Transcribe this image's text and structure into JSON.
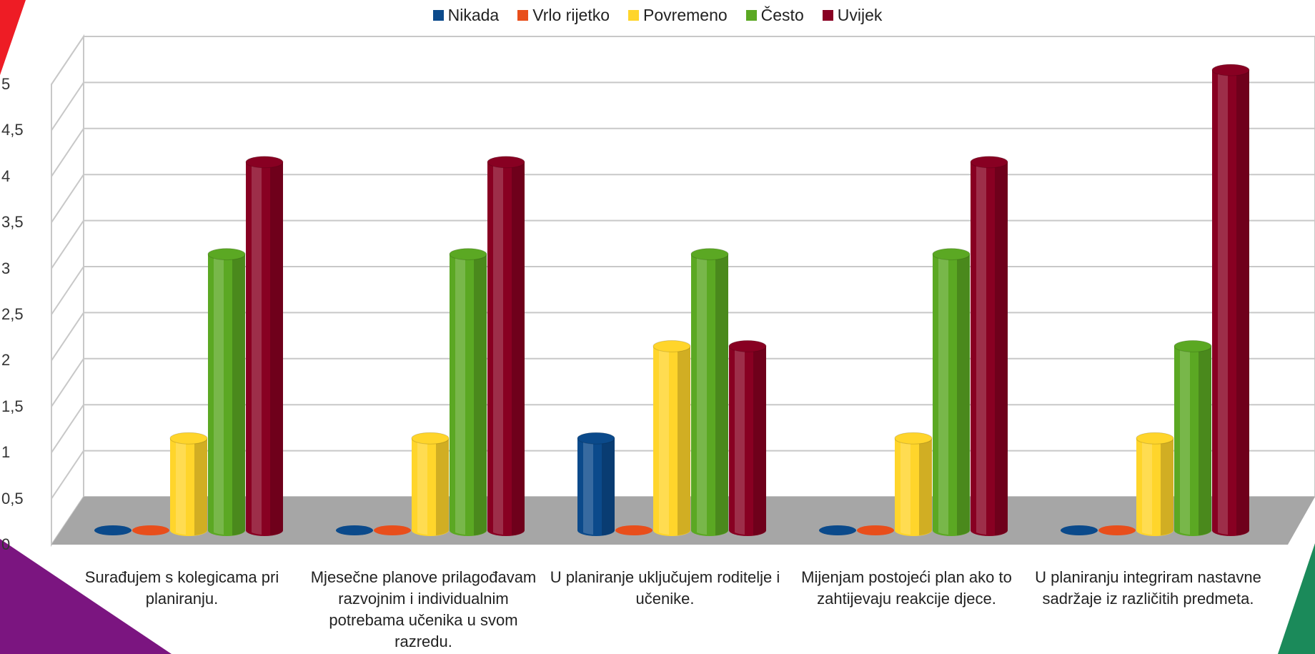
{
  "chart_data": {
    "type": "bar",
    "categories": [
      "Surađujem s kolegicama pri planiranju.",
      "Mjesečne planove prilagođavam razvojnim i individualnim potrebama učenika u svom razredu.",
      "U planiranje uključujem roditelje i učenike.",
      "Mijenjam postojeći plan ako to zahtijevaju reakcije djece.",
      "U planiranju integriram nastavne sadržaje iz različitih predmeta."
    ],
    "series": [
      {
        "name": "Nikada",
        "values": [
          0,
          0,
          1,
          0,
          0
        ],
        "color": "#0b4a8b"
      },
      {
        "name": "Vrlo rijetko",
        "values": [
          0,
          0,
          0,
          0,
          0
        ],
        "color": "#e84e1b"
      },
      {
        "name": "Povremeno",
        "values": [
          1,
          1,
          2,
          1,
          1
        ],
        "color": "#ffd52b"
      },
      {
        "name": "Često",
        "values": [
          3,
          3,
          3,
          3,
          2
        ],
        "color": "#5ba823"
      },
      {
        "name": "Uvijek",
        "values": [
          4,
          4,
          2,
          4,
          5
        ],
        "color": "#880022"
      }
    ],
    "yticks": [
      "0",
      "0,5",
      "1",
      "1,5",
      "2",
      "2,5",
      "3",
      "3,5",
      "4",
      "4,5",
      "5"
    ],
    "ylim": [
      0,
      5
    ],
    "legend_position": "top",
    "grid": true,
    "style": "3d-cylinder"
  },
  "decor": {
    "red_corner": "#ee1c25",
    "purple_corner": "#7b1580",
    "green_corner": "#1b8a5a"
  }
}
